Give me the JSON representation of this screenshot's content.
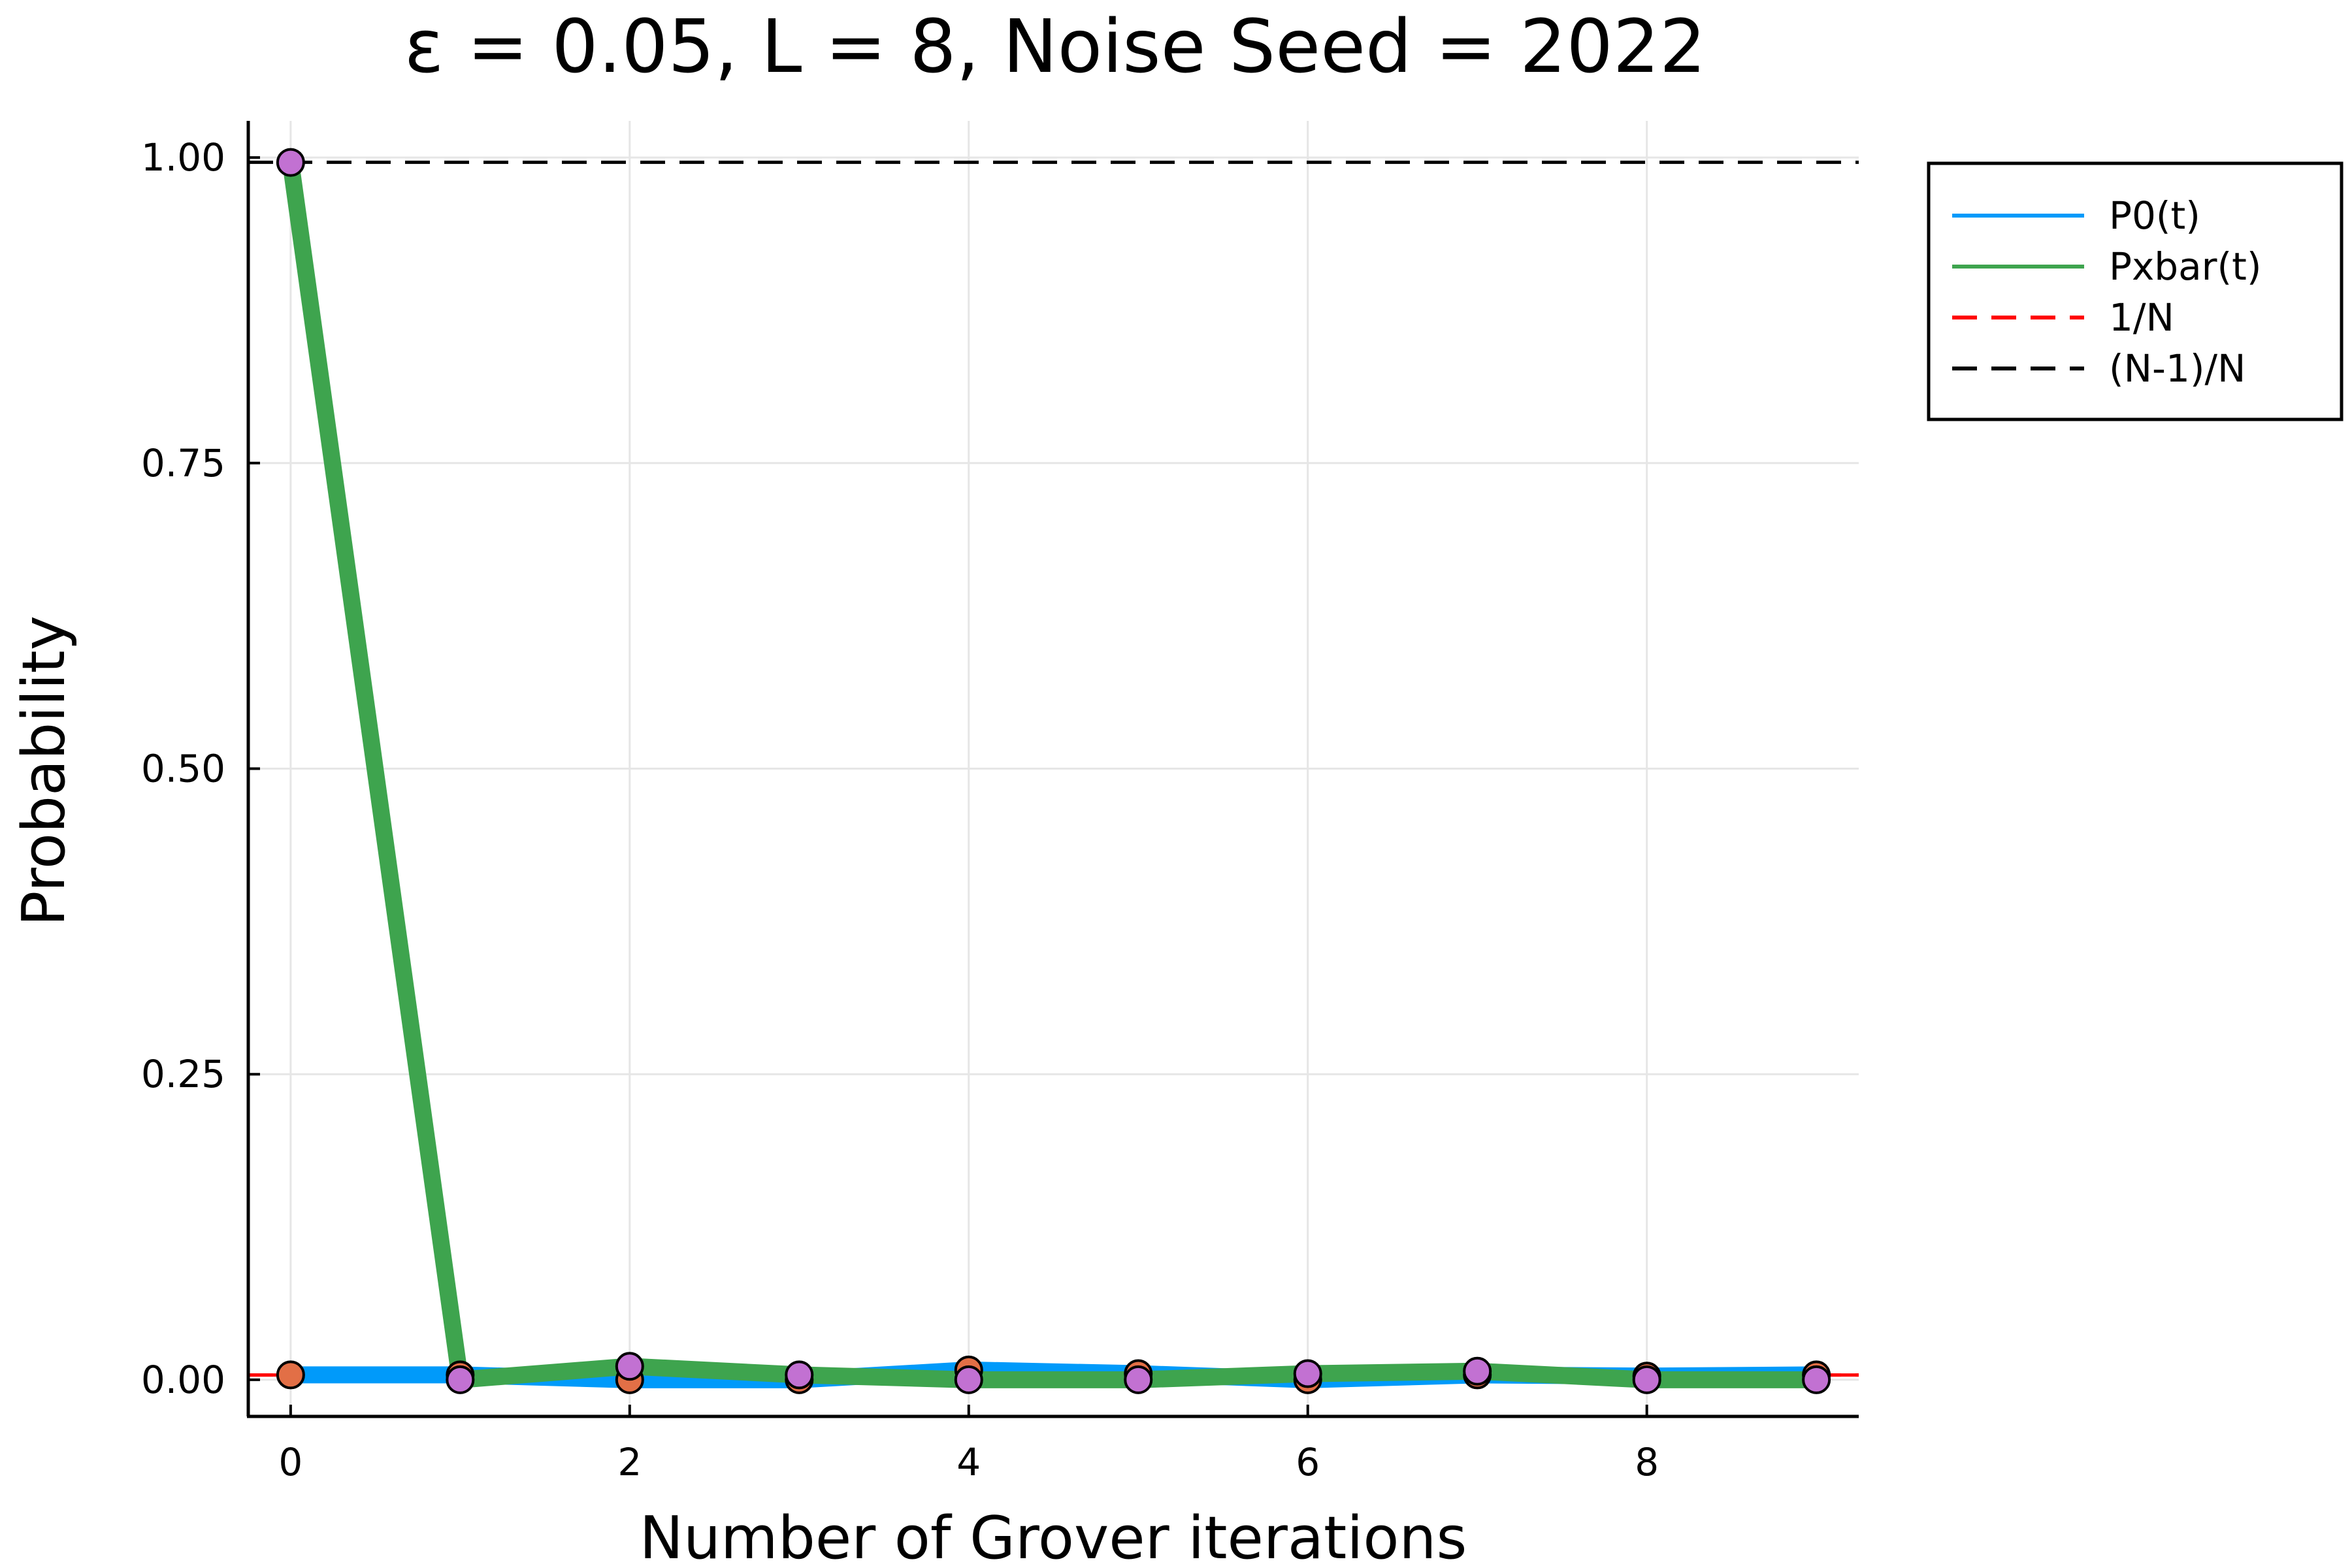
{
  "chart_data": {
    "type": "line",
    "title": "ε = 0.05, L = 8, Noise Seed = 2022",
    "xlabel": "Number of Grover iterations",
    "ylabel": "Probability",
    "xlim": [
      -0.25,
      9.25
    ],
    "ylim": [
      -0.03,
      1.03
    ],
    "x_ticks": [
      "0",
      "2",
      "4",
      "6",
      "8"
    ],
    "x_tick_values": [
      0,
      2,
      4,
      6,
      8
    ],
    "y_ticks": [
      "0.00",
      "0.25",
      "0.50",
      "0.75",
      "1.00"
    ],
    "y_tick_values": [
      0,
      0.25,
      0.5,
      0.75,
      1.0
    ],
    "grid": true,
    "legend_position": "outside-top-right",
    "x": [
      0,
      1,
      2,
      3,
      4,
      5,
      6,
      7,
      8,
      9
    ],
    "series": [
      {
        "name": "P0(t)",
        "color": "#009AFA",
        "values": [
          0.004,
          0.004,
          0.0,
          0.0,
          0.008,
          0.005,
          0.0,
          0.004,
          0.003,
          0.004
        ],
        "marker_color": "#E26F46"
      },
      {
        "name": "Pxbar(t)",
        "color": "#3EA44E",
        "values": [
          0.996,
          0.0,
          0.011,
          0.004,
          0.0,
          0.0,
          0.005,
          0.007,
          0.0,
          0.0
        ],
        "marker_color": "#C271D2"
      }
    ],
    "reference_lines": [
      {
        "name": "1/N",
        "value": 0.00390625,
        "color": "#FF0000"
      },
      {
        "name": "(N-1)/N",
        "value": 0.99609375,
        "color": "#000000"
      }
    ]
  }
}
